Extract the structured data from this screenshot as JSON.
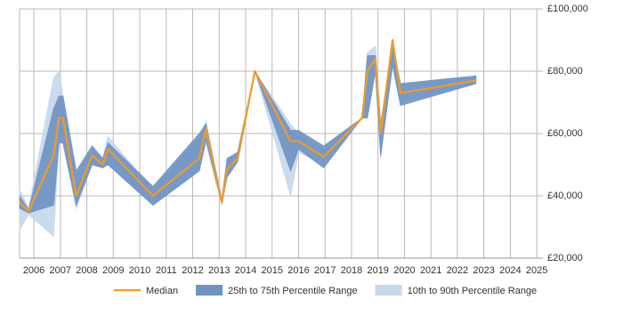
{
  "chart_data": {
    "type": "line-band",
    "x": [
      2005.46,
      2005.8,
      2006.75,
      2006.95,
      2007.1,
      2007.6,
      2008.2,
      2008.6,
      2008.8,
      2010.5,
      2012.25,
      2012.5,
      2013.1,
      2013.3,
      2013.7,
      2014.35,
      2015.7,
      2016.0,
      2016.95,
      2018.4,
      2018.6,
      2018.9,
      2019.1,
      2019.55,
      2019.85,
      2022.7
    ],
    "series": [
      {
        "name": "10th to 90th Percentile Range",
        "color": "#c6d8ec",
        "low": [
          29000,
          34000,
          27000,
          58000,
          57000,
          36000,
          50000,
          49000,
          50000,
          37000,
          48000,
          57000,
          37000,
          46000,
          51000,
          80000,
          40000,
          54000,
          50000,
          65000,
          65000,
          80000,
          52000,
          82000,
          70000,
          76000
        ],
        "high": [
          42000,
          36000,
          78000,
          80000,
          72000,
          46000,
          55000,
          52000,
          59000,
          42000,
          59000,
          64000,
          39000,
          52000,
          54000,
          80000,
          63000,
          60000,
          55000,
          65000,
          86000,
          88000,
          63000,
          90000,
          76000,
          78500
        ]
      },
      {
        "name": "25th to 75th Percentile Range",
        "color": "#6f92c2",
        "low": [
          36000,
          34500,
          37000,
          57000,
          57000,
          37000,
          50000,
          49000,
          50000,
          37000,
          48000,
          58000,
          37500,
          46000,
          51000,
          80000,
          48000,
          55000,
          49000,
          65000,
          65000,
          80000,
          53000,
          82000,
          69000,
          76000
        ],
        "high": [
          40000,
          35500,
          68000,
          72000,
          72000,
          48000,
          56000,
          52000,
          57000,
          43000,
          60000,
          63000,
          38500,
          52000,
          54000,
          80000,
          61000,
          61000,
          56000,
          65000,
          85000,
          85000,
          63000,
          88000,
          76000,
          78500
        ]
      },
      {
        "name": "Median",
        "color": "#ee9a2a",
        "values": [
          38000,
          35000,
          53000,
          65000,
          65000,
          40000,
          53000,
          50000,
          55000,
          40000,
          52000,
          61500,
          38000,
          48500,
          52000,
          80000,
          57500,
          57500,
          52500,
          65000,
          80000,
          84000,
          60000,
          90000,
          73000,
          77000
        ]
      }
    ],
    "xlim": [
      2005.46,
      2025.23
    ],
    "xticks": [
      2006,
      2007,
      2008,
      2009,
      2010,
      2011,
      2012,
      2013,
      2014,
      2015,
      2016,
      2017,
      2018,
      2019,
      2020,
      2021,
      2022,
      2023,
      2024,
      2025
    ],
    "ylim": [
      20000,
      100000
    ],
    "yticks": [
      {
        "value": 20000,
        "label": "£20,000"
      },
      {
        "value": 40000,
        "label": "£40,000"
      },
      {
        "value": 60000,
        "label": "£60,000"
      },
      {
        "value": 80000,
        "label": "£80,000"
      },
      {
        "value": 100000,
        "label": "£100,000"
      }
    ],
    "grid": true
  }
}
